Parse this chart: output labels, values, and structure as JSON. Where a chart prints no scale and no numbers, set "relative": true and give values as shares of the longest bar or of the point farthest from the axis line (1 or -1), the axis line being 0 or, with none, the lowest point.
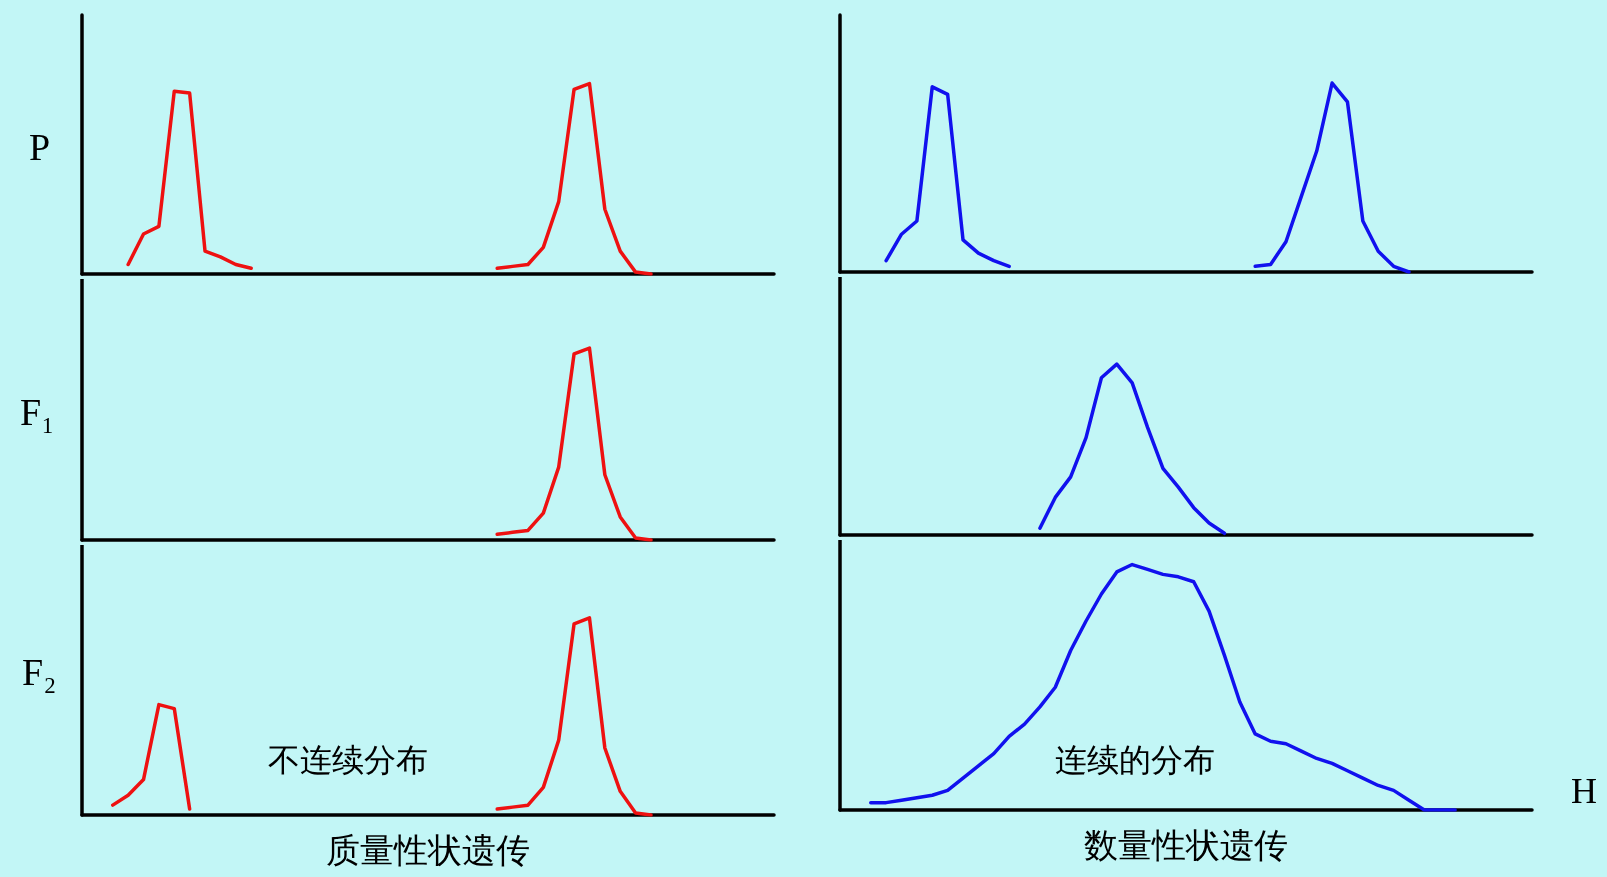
{
  "chart_data": [
    {
      "type": "line",
      "relative": true,
      "ylabel": "P",
      "categories": [
        null,
        null,
        null,
        null,
        null,
        null,
        null,
        null,
        null,
        null,
        null,
        null,
        null,
        null,
        null,
        null,
        null,
        null,
        null,
        null,
        null,
        null,
        null,
        null,
        null,
        null,
        null,
        null,
        null,
        null,
        null,
        null,
        null,
        null,
        null,
        null,
        null,
        null,
        null,
        null,
        null,
        null,
        null,
        null,
        null,
        null
      ],
      "series": [
        {
          "color": "#ee1111",
          "values": [
            null,
            null,
            null,
            0.05,
            0.21,
            0.25,
            0.96,
            0.95,
            0.12,
            0.09,
            0.05,
            0.03,
            null,
            null,
            null,
            null,
            null,
            null,
            null,
            null,
            null,
            null,
            null,
            null,
            null,
            null,
            null,
            null,
            null,
            null,
            null,
            null,
            null,
            null,
            null,
            null,
            null,
            null,
            null,
            null,
            null,
            null,
            null,
            null,
            null,
            null
          ]
        },
        {
          "color": "#ee1111",
          "values": [
            null,
            null,
            null,
            null,
            null,
            null,
            null,
            null,
            null,
            null,
            null,
            null,
            null,
            null,
            null,
            null,
            null,
            null,
            null,
            null,
            null,
            null,
            null,
            null,
            null,
            null,
            null,
            0.03,
            0.04,
            0.05,
            0.14,
            0.38,
            0.97,
            1,
            0.34,
            0.12,
            0.01,
            0,
            null,
            null,
            null,
            null,
            null,
            null,
            null,
            null
          ]
        }
      ]
    },
    {
      "type": "line",
      "relative": true,
      "ylabel": "F₁",
      "categories": [
        null,
        null,
        null,
        null,
        null,
        null,
        null,
        null,
        null,
        null,
        null,
        null,
        null,
        null,
        null,
        null,
        null,
        null,
        null,
        null,
        null,
        null,
        null,
        null,
        null,
        null,
        null,
        null,
        null,
        null,
        null,
        null,
        null,
        null,
        null,
        null,
        null,
        null,
        null,
        null,
        null,
        null,
        null,
        null,
        null,
        null
      ],
      "series": [
        {
          "color": "#ee1111",
          "values": [
            null,
            null,
            null,
            null,
            null,
            null,
            null,
            null,
            null,
            null,
            null,
            null,
            null,
            null,
            null,
            null,
            null,
            null,
            null,
            null,
            null,
            null,
            null,
            null,
            null,
            null,
            null,
            0.03,
            0.04,
            0.05,
            0.14,
            0.38,
            0.97,
            1,
            0.34,
            0.12,
            0.01,
            0,
            null,
            null,
            null,
            null,
            null,
            null,
            null,
            null
          ]
        }
      ]
    },
    {
      "type": "line",
      "relative": true,
      "ylabel": "F₂",
      "xlabel": "质量性状遗传",
      "annotations": [
        "不连续分布"
      ],
      "categories": [
        null,
        null,
        null,
        null,
        null,
        null,
        null,
        null,
        null,
        null,
        null,
        null,
        null,
        null,
        null,
        null,
        null,
        null,
        null,
        null,
        null,
        null,
        null,
        null,
        null,
        null,
        null,
        null,
        null,
        null,
        null,
        null,
        null,
        null,
        null,
        null,
        null,
        null,
        null,
        null,
        null,
        null,
        null,
        null,
        null,
        null
      ],
      "series": [
        {
          "color": "#ee1111",
          "values": [
            null,
            null,
            0.05,
            0.1,
            0.18,
            0.56,
            0.54,
            0.03,
            null,
            null,
            null,
            null,
            null,
            null,
            null,
            null,
            null,
            null,
            null,
            null,
            null,
            null,
            null,
            null,
            null,
            null,
            null,
            null,
            null,
            null,
            null,
            null,
            null,
            null,
            null,
            null,
            null,
            null,
            null,
            null,
            null,
            null,
            null,
            null,
            null,
            null
          ]
        },
        {
          "color": "#ee1111",
          "values": [
            null,
            null,
            null,
            null,
            null,
            null,
            null,
            null,
            null,
            null,
            null,
            null,
            null,
            null,
            null,
            null,
            null,
            null,
            null,
            null,
            null,
            null,
            null,
            null,
            null,
            null,
            null,
            0.03,
            0.04,
            0.05,
            0.14,
            0.38,
            0.97,
            1,
            0.34,
            0.12,
            0.01,
            0,
            null,
            null,
            null,
            null,
            null,
            null,
            null,
            null
          ]
        }
      ]
    },
    {
      "type": "line",
      "relative": true,
      "categories": [
        null,
        null,
        null,
        null,
        null,
        null,
        null,
        null,
        null,
        null,
        null,
        null,
        null,
        null,
        null,
        null,
        null,
        null,
        null,
        null,
        null,
        null,
        null,
        null,
        null,
        null,
        null,
        null,
        null,
        null,
        null,
        null,
        null,
        null,
        null,
        null,
        null,
        null,
        null,
        null,
        null,
        null,
        null,
        null,
        null,
        null
      ],
      "series": [
        {
          "color": "#1111ee",
          "values": [
            null,
            null,
            null,
            0.06,
            0.2,
            0.27,
            0.98,
            0.94,
            0.17,
            0.1,
            0.06,
            0.03,
            null,
            null,
            null,
            null,
            null,
            null,
            null,
            null,
            null,
            null,
            null,
            null,
            null,
            null,
            null,
            null,
            null,
            null,
            null,
            null,
            null,
            null,
            null,
            null,
            null,
            null,
            null,
            null,
            null,
            null,
            null,
            null,
            null,
            null
          ]
        },
        {
          "color": "#1111ee",
          "values": [
            null,
            null,
            null,
            null,
            null,
            null,
            null,
            null,
            null,
            null,
            null,
            null,
            null,
            null,
            null,
            null,
            null,
            null,
            null,
            null,
            null,
            null,
            null,
            null,
            null,
            null,
            null,
            0.03,
            0.04,
            0.16,
            0.4,
            0.64,
            1,
            0.9,
            0.27,
            0.11,
            0.03,
            0,
            null,
            null,
            null,
            null,
            null,
            null,
            null,
            null
          ]
        }
      ]
    },
    {
      "type": "line",
      "relative": true,
      "categories": [
        null,
        null,
        null,
        null,
        null,
        null,
        null,
        null,
        null,
        null,
        null,
        null,
        null,
        null,
        null,
        null,
        null,
        null,
        null,
        null,
        null,
        null,
        null,
        null,
        null,
        null,
        null,
        null,
        null,
        null,
        null,
        null,
        null,
        null,
        null,
        null,
        null,
        null,
        null,
        null,
        null,
        null,
        null,
        null,
        null,
        null
      ],
      "series": [
        {
          "color": "#1111ee",
          "values": [
            null,
            null,
            null,
            null,
            null,
            null,
            null,
            null,
            null,
            null,
            null,
            null,
            null,
            0.04,
            0.22,
            0.34,
            0.57,
            0.92,
            1,
            0.89,
            0.63,
            0.39,
            0.28,
            0.16,
            0.07,
            0.01,
            null,
            null,
            null,
            null,
            null,
            null,
            null,
            null,
            null,
            null,
            null,
            null,
            null,
            null,
            null,
            null,
            null,
            null,
            null,
            null
          ]
        }
      ]
    },
    {
      "type": "line",
      "relative": true,
      "xlabel": "数量性状遗传",
      "annotations": [
        "连续的分布",
        "H"
      ],
      "categories": [
        null,
        null,
        null,
        null,
        null,
        null,
        null,
        null,
        null,
        null,
        null,
        null,
        null,
        null,
        null,
        null,
        null,
        null,
        null,
        null,
        null,
        null,
        null,
        null,
        null,
        null,
        null,
        null,
        null,
        null,
        null,
        null,
        null,
        null,
        null,
        null,
        null,
        null,
        null,
        null,
        null,
        null,
        null,
        null,
        null,
        null
      ],
      "series": [
        {
          "color": "#1111ee",
          "values": [
            null,
            null,
            0.03,
            0.03,
            0.04,
            0.05,
            0.06,
            0.08,
            0.13,
            0.18,
            0.23,
            0.3,
            0.35,
            0.42,
            0.5,
            0.65,
            0.77,
            0.88,
            0.97,
            1,
            0.98,
            0.96,
            0.95,
            0.93,
            0.81,
            0.63,
            0.44,
            0.31,
            0.28,
            0.27,
            0.24,
            0.21,
            0.19,
            0.16,
            0.13,
            0.1,
            0.08,
            0.04,
            0,
            0,
            0,
            null,
            null,
            null,
            null,
            null
          ]
        }
      ]
    }
  ]
}
